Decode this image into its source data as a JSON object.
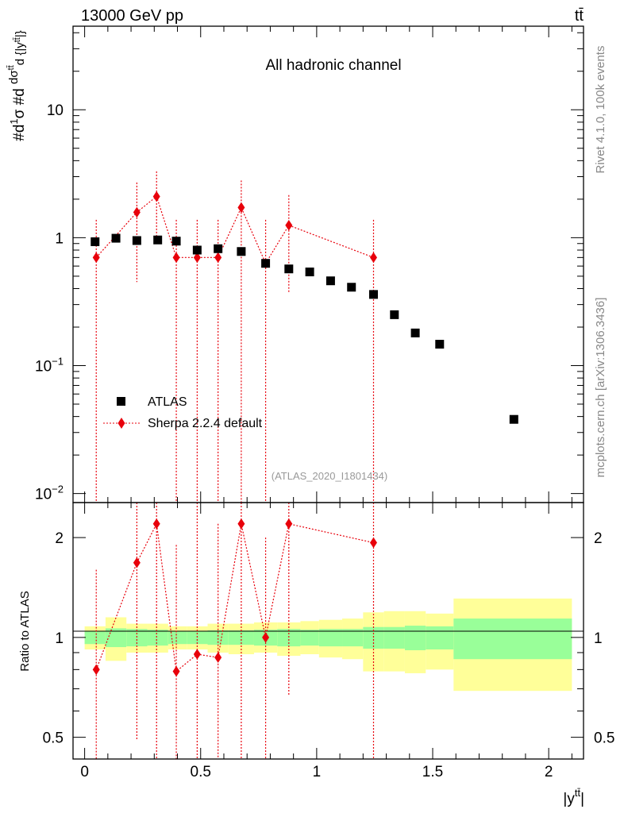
{
  "header": {
    "left": "13000 GeV pp",
    "right": "tt̄"
  },
  "side_text": {
    "rivet": "Rivet 4.1.0,  100k events",
    "mcplots": "mcplots.cern.ch [arXiv:1306.3436]"
  },
  "chart_data": [
    {
      "type": "scatter",
      "panel": "main",
      "title": "All hadronic channel",
      "watermark": "(ATLAS_2020_I1801434)",
      "ylabel": "#d 1/σ #d dσ^{tt̄} / d{|y^{tt̄}|}",
      "yscale": "log",
      "ylim": [
        0.0085,
        45
      ],
      "xlim": [
        -0.05,
        2.15
      ],
      "yticks": [
        0.01,
        0.1,
        1,
        10
      ],
      "ytick_labels": [
        "10−2",
        "10−1",
        "1",
        "10"
      ],
      "legend_position": "middle-left",
      "series": [
        {
          "name": "ATLAS",
          "marker": "square",
          "color": "#000000",
          "x": [
            0.045,
            0.135,
            0.225,
            0.315,
            0.395,
            0.485,
            0.575,
            0.675,
            0.78,
            0.88,
            0.97,
            1.06,
            1.15,
            1.245,
            1.335,
            1.425,
            1.53,
            1.85
          ],
          "y": [
            0.93,
            0.99,
            0.95,
            0.96,
            0.94,
            0.8,
            0.82,
            0.78,
            0.63,
            0.57,
            0.54,
            0.46,
            0.41,
            0.36,
            0.25,
            0.18,
            0.147,
            0.038
          ]
        },
        {
          "name": "Sherpa 2.2.4 default",
          "marker": "diamond",
          "line": "dotted",
          "color": "#e8000b",
          "x": [
            0.05,
            0.225,
            0.31,
            0.395,
            0.485,
            0.575,
            0.675,
            0.78,
            0.88,
            1.245
          ],
          "y": [
            0.7,
            1.58,
            2.1,
            0.7,
            0.7,
            0.7,
            1.72,
            0.63,
            1.25,
            0.7
          ],
          "y_lo": [
            0.0085,
            0.45,
            0.9,
            0.0085,
            0.0085,
            0.0085,
            0.0085,
            0.0085,
            0.37,
            0.0085
          ],
          "y_hi": [
            1.38,
            2.7,
            3.3,
            1.38,
            1.38,
            1.38,
            2.8,
            1.38,
            2.15,
            1.38
          ]
        }
      ]
    },
    {
      "type": "scatter",
      "panel": "ratio",
      "ylabel": "Ratio to ATLAS",
      "yscale": "log",
      "ylim": [
        0.43,
        2.55
      ],
      "yticks": [
        0.5,
        1,
        2
      ],
      "ytick_labels": [
        "0.5",
        "1",
        "2"
      ],
      "xlabel": "|y^{tt̄}|",
      "xticks": [
        0,
        0.5,
        1,
        1.5,
        2
      ],
      "xtick_labels": [
        "0",
        "0.5",
        "1",
        "1.5",
        "2"
      ],
      "bands": {
        "edges": [
          0.0,
          0.09,
          0.18,
          0.27,
          0.36,
          0.44,
          0.53,
          0.62,
          0.73,
          0.83,
          0.93,
          1.01,
          1.11,
          1.2,
          1.29,
          1.38,
          1.47,
          1.59,
          2.1
        ],
        "inner_lo": [
          0.955,
          0.935,
          0.94,
          0.945,
          0.955,
          0.955,
          0.95,
          0.95,
          0.945,
          0.94,
          0.945,
          0.94,
          0.94,
          0.925,
          0.925,
          0.915,
          0.92,
          0.86
        ],
        "inner_hi": [
          1.045,
          1.065,
          1.06,
          1.055,
          1.045,
          1.045,
          1.05,
          1.05,
          1.055,
          1.06,
          1.055,
          1.06,
          1.06,
          1.075,
          1.075,
          1.085,
          1.08,
          1.14
        ],
        "outer_lo": [
          0.92,
          0.85,
          0.9,
          0.9,
          0.92,
          0.92,
          0.9,
          0.89,
          0.9,
          0.88,
          0.89,
          0.87,
          0.86,
          0.79,
          0.79,
          0.78,
          0.8,
          0.69
        ],
        "outer_hi": [
          1.08,
          1.15,
          1.1,
          1.1,
          1.08,
          1.08,
          1.1,
          1.1,
          1.11,
          1.11,
          1.12,
          1.13,
          1.14,
          1.19,
          1.2,
          1.2,
          1.18,
          1.31
        ],
        "inner_color": "#99ff99",
        "outer_color": "#ffff99"
      },
      "series": [
        {
          "name": "Sherpa 2.2.4 default",
          "color": "#e8000b",
          "x": [
            0.05,
            0.225,
            0.31,
            0.395,
            0.485,
            0.575,
            0.675,
            0.78,
            0.88,
            1.245
          ],
          "y": [
            0.8,
            1.68,
            2.2,
            0.79,
            0.89,
            0.87,
            2.2,
            1.0,
            2.2,
            1.93
          ],
          "y_lo": [
            0.43,
            0.49,
            0.43,
            0.43,
            0.43,
            0.43,
            0.43,
            0.43,
            0.67,
            0.43
          ],
          "y_hi": [
            1.6,
            2.55,
            2.55,
            1.9,
            2.55,
            2.2,
            2.55,
            2.0,
            2.55,
            2.55
          ]
        }
      ]
    }
  ]
}
